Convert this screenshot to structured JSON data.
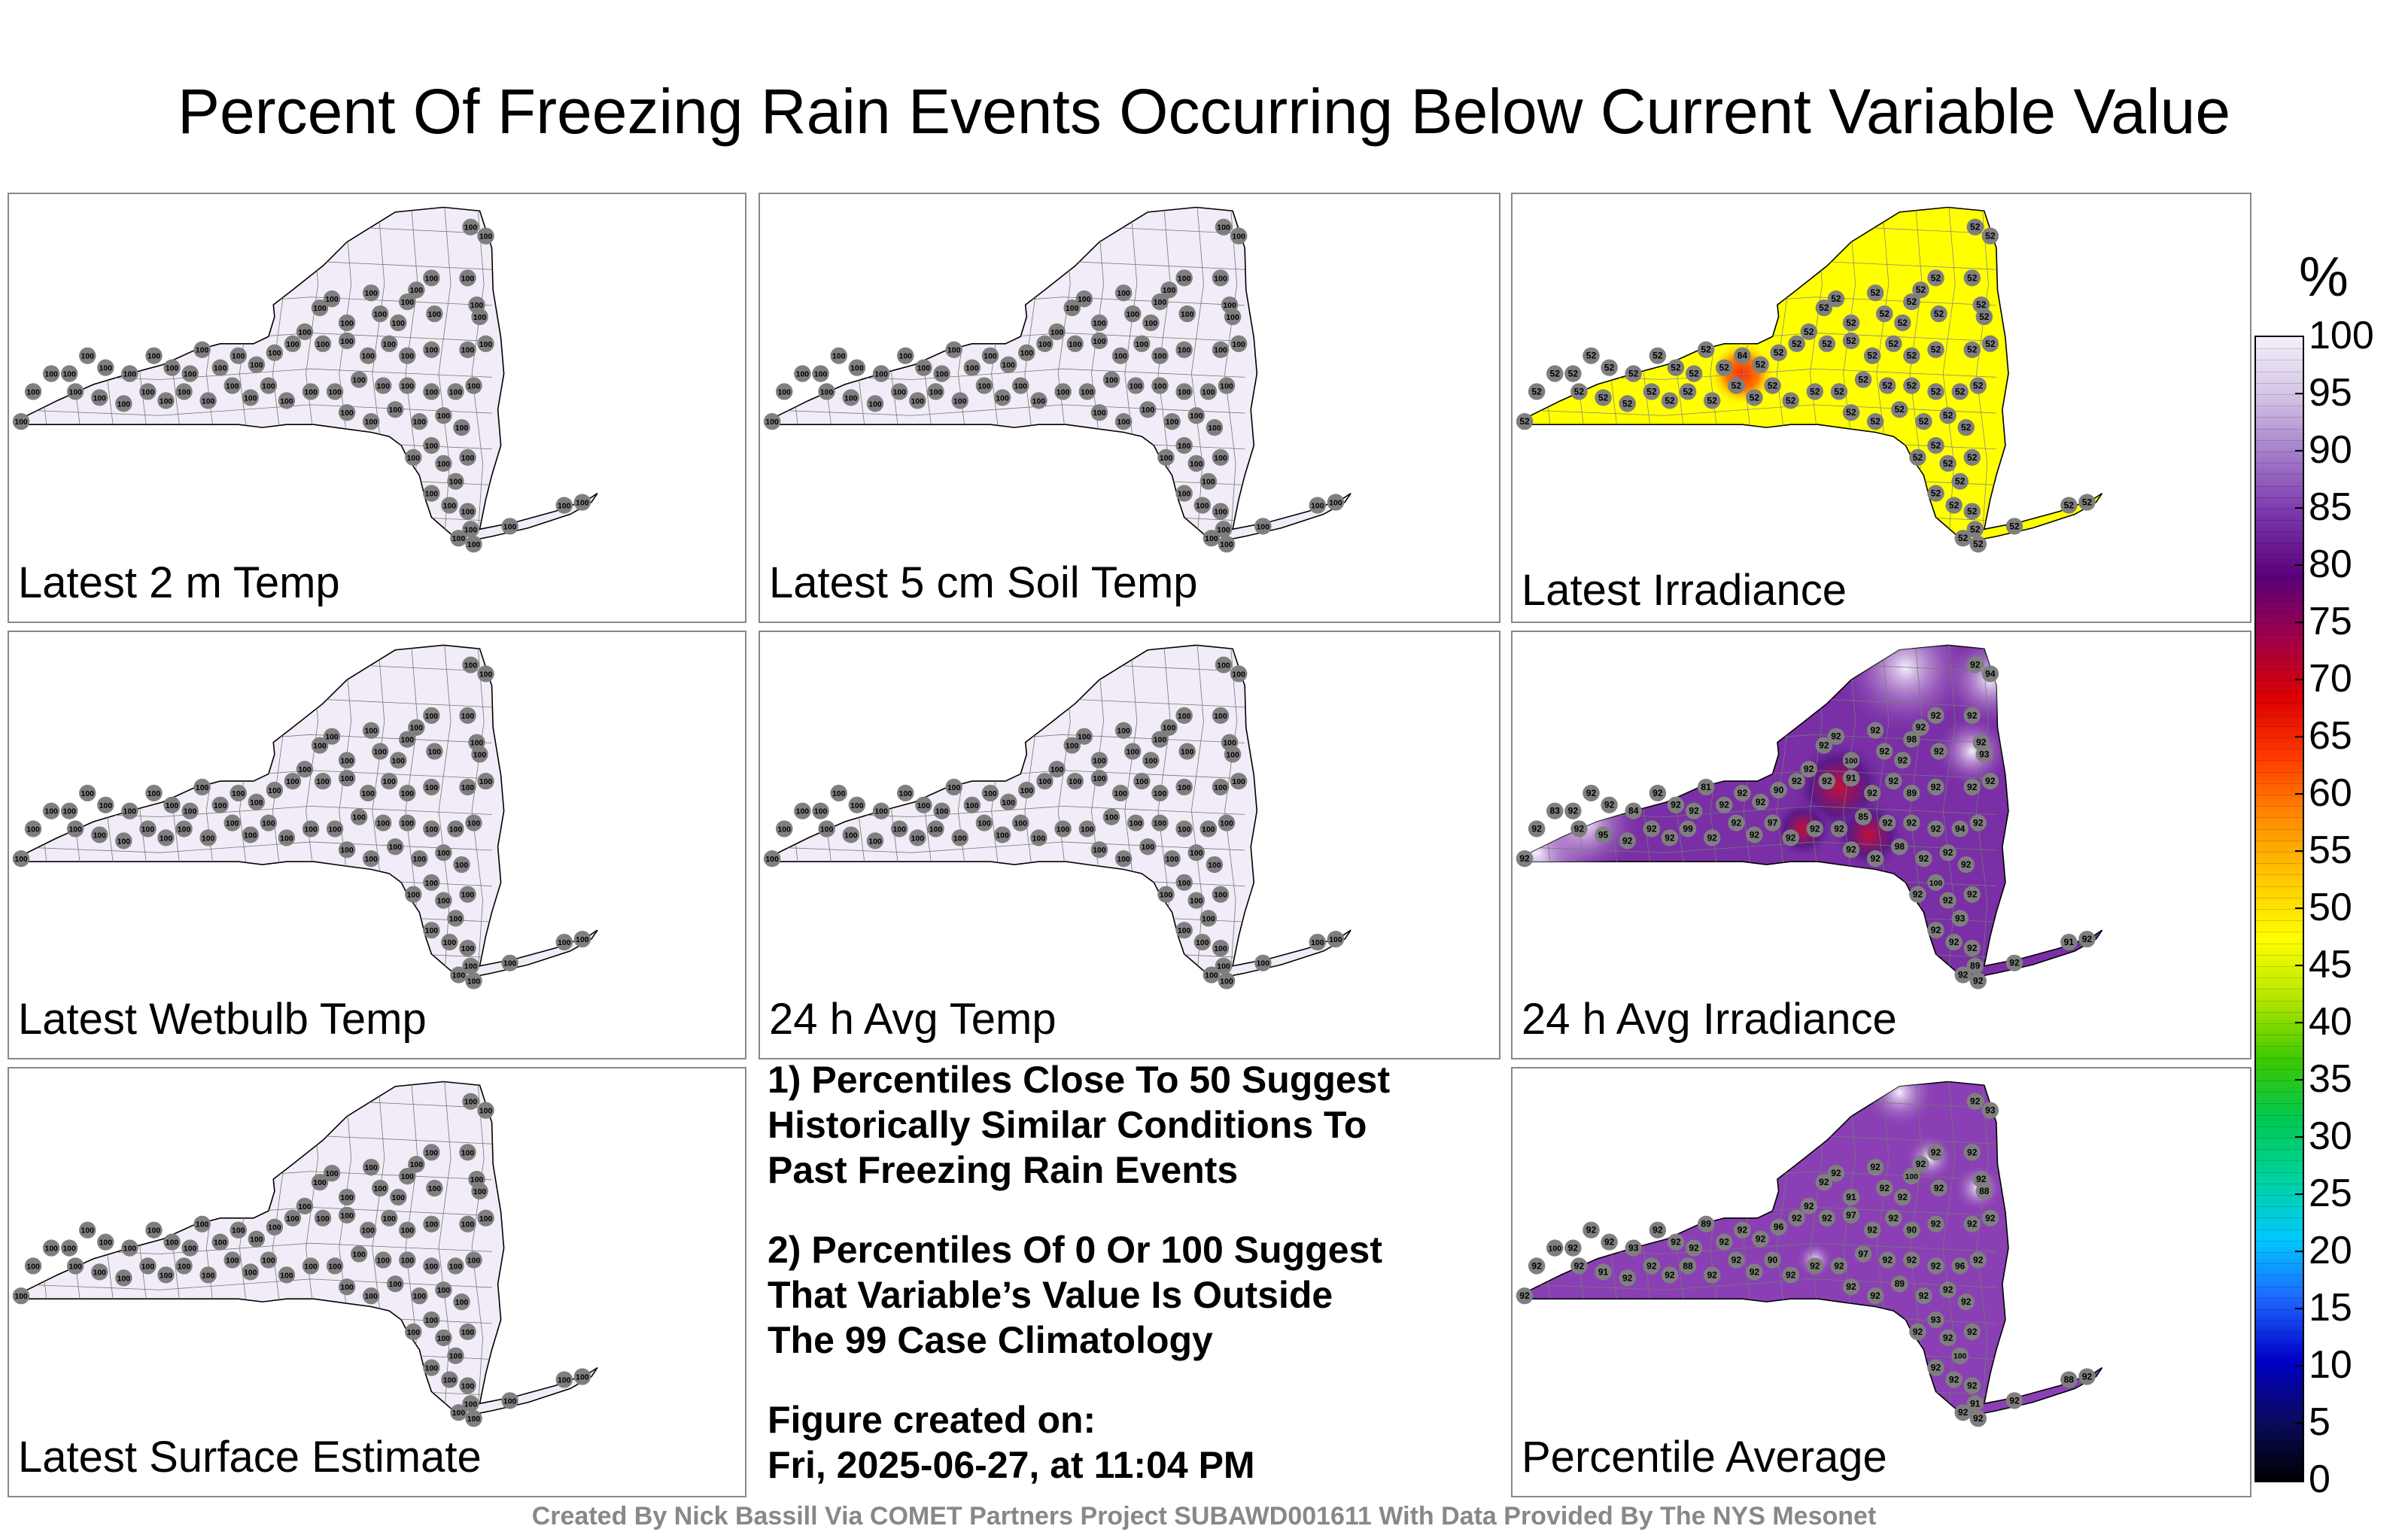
{
  "title": "Percent Of Freezing Rain Events Occurring Below Current Variable Value",
  "panels": [
    {
      "label": "Latest 2 m Temp",
      "fill": "#f1ecf7",
      "default_value": "100"
    },
    {
      "label": "Latest 5 cm Soil Temp",
      "fill": "#f1ecf7",
      "default_value": "100"
    },
    {
      "label": "Latest Irradiance",
      "fill": "#ffff00",
      "default_value": "52",
      "hotspot": {
        "value": "84",
        "color": "#ff3a1a"
      }
    },
    {
      "label": "Latest Wetbulb Temp",
      "fill": "#f1ecf7",
      "default_value": "100"
    },
    {
      "label": "24 h Avg Temp",
      "fill": "#f1ecf7",
      "default_value": "100"
    },
    {
      "label": "24 h Avg Irradiance",
      "fill": "#7a2fa6",
      "default_value": "92",
      "other_values": [
        "94",
        "98",
        "100",
        "93",
        "89",
        "91",
        "90",
        "81",
        "84",
        "83",
        "95",
        "99",
        "97",
        "85"
      ]
    },
    {
      "label": "Latest Surface Estimate",
      "fill": "#f1ecf7",
      "default_value": "100"
    },
    {
      "label": "Percentile Average",
      "fill": "#8a40b4",
      "default_value": "92",
      "other_values": [
        "93",
        "100",
        "91",
        "88",
        "90",
        "97",
        "96",
        "89"
      ]
    }
  ],
  "notes": {
    "note1": [
      "1) Percentiles Close To 50 Suggest",
      "Historically Similar Conditions To",
      "Past Freezing Rain Events"
    ],
    "note2": [
      "2) Percentiles Of 0 Or 100 Suggest",
      "That Variable’s Value Is Outside",
      "The 99 Case Climatology"
    ],
    "figure_created_label": "Figure created on:",
    "figure_created_value": "Fri, 2025-06-27, at 11:04 PM"
  },
  "colorbar": {
    "unit": "%",
    "ticks": [
      "0",
      "5",
      "10",
      "15",
      "20",
      "25",
      "30",
      "35",
      "40",
      "45",
      "50",
      "55",
      "60",
      "65",
      "70",
      "75",
      "80",
      "85",
      "90",
      "95",
      "100"
    ],
    "stops": [
      "#000000",
      "#0a0a60",
      "#0000c8",
      "#1e64ff",
      "#00c8ff",
      "#00d2a0",
      "#00c850",
      "#3cc800",
      "#b4e600",
      "#ffff00",
      "#ffc800",
      "#ff8c00",
      "#ff3c00",
      "#dc0000",
      "#a0004a",
      "#5a0078",
      "#7832aa",
      "#a078c8",
      "#d2c3e6",
      "#f5f0fa"
    ]
  },
  "footer": "Created By Nick Bassill Via COMET Partners Project SUBAWD001611 With Data Provided By The NYS Mesonet"
}
